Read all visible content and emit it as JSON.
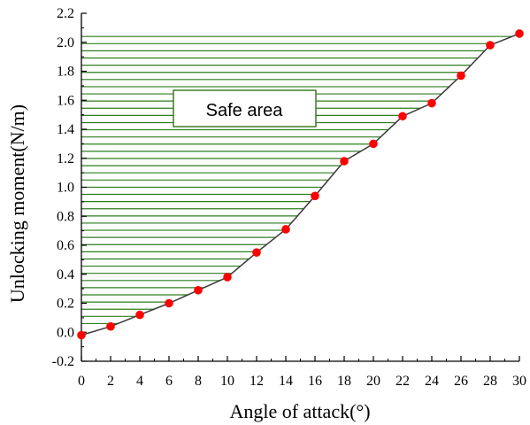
{
  "chart_data": {
    "type": "line",
    "title": "",
    "xlabel": "Angle of attack(°)",
    "ylabel": "Unlocking moment(N/m)",
    "xlim": [
      0,
      30
    ],
    "ylim": [
      -0.2,
      2.2
    ],
    "xticks": [
      "0",
      "2",
      "4",
      "6",
      "8",
      "10",
      "12",
      "14",
      "16",
      "18",
      "20",
      "22",
      "24",
      "26",
      "28",
      "30"
    ],
    "yticks": [
      "-0.2",
      "0.0",
      "0.2",
      "0.4",
      "0.6",
      "0.8",
      "1.0",
      "1.2",
      "1.4",
      "1.6",
      "1.8",
      "2.0",
      "2.2"
    ],
    "x": [
      0,
      2,
      4,
      6,
      8,
      10,
      12,
      14,
      16,
      18,
      20,
      22,
      24,
      26,
      28,
      30
    ],
    "y": [
      -0.02,
      0.04,
      0.12,
      0.2,
      0.29,
      0.38,
      0.55,
      0.71,
      0.94,
      1.18,
      1.3,
      1.49,
      1.58,
      1.77,
      1.98,
      2.06
    ],
    "annotation": "Safe area",
    "colors": {
      "line": "#3a3a3a",
      "marker": "#ff0000",
      "hatch": "#2e7d1f",
      "box_border": "#3d7a26"
    }
  }
}
